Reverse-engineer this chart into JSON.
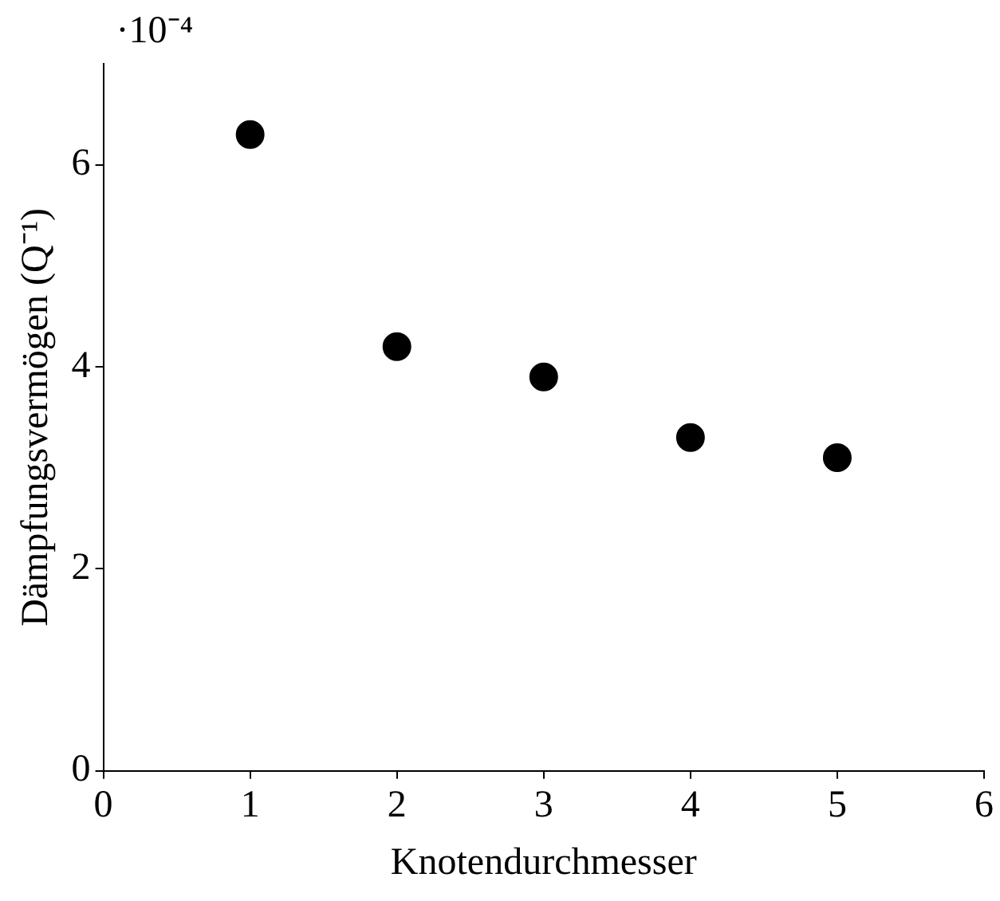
{
  "chart_data": {
    "type": "scatter",
    "xlabel": "Knotendurchmesser",
    "ylabel": "Dämpfungsvermögen (Q⁻¹)",
    "annotations": [
      "·10⁻⁴"
    ],
    "x": [
      1,
      2,
      3,
      4,
      5
    ],
    "series": [
      {
        "color": "#000000",
        "values": [
          6.3,
          4.2,
          3.9,
          3.3,
          3.1
        ]
      }
    ],
    "xlim": [
      0,
      6
    ],
    "xticks": [
      0,
      1,
      2,
      3,
      4,
      5,
      6
    ],
    "ylim": [
      0,
      7
    ],
    "yticks": [
      0,
      2,
      4,
      6
    ],
    "grid": false,
    "legend": false,
    "marker": "circle"
  }
}
